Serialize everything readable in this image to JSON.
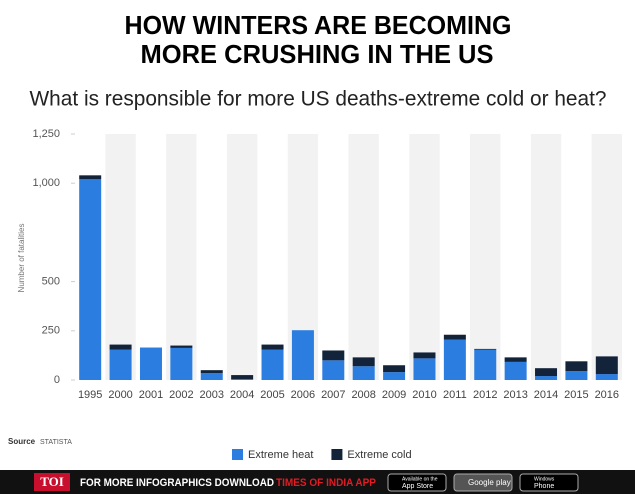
{
  "chart_data": {
    "type": "bar",
    "stacked": true,
    "title": [
      "HOW WINTERS ARE BECOMING",
      "MORE CRUSHING IN THE US"
    ],
    "subtitle": "What is responsible for more US deaths-extreme cold or heat?",
    "y_label": "Number of fatalities",
    "categories": [
      "1995",
      "2000",
      "2001",
      "2002",
      "2003",
      "2004",
      "2005",
      "2006",
      "2007",
      "2008",
      "2009",
      "2010",
      "2011",
      "2012",
      "2013",
      "2014",
      "2015",
      "2016"
    ],
    "series": [
      {
        "name": "Extreme heat",
        "color": "#2b7de0",
        "values": [
          1020,
          155,
          165,
          163,
          35,
          5,
          155,
          253,
          100,
          70,
          40,
          110,
          205,
          155,
          92,
          20,
          45,
          30
        ]
      },
      {
        "name": "Extreme cold",
        "color": "#13233a",
        "values": [
          20,
          25,
          0,
          12,
          15,
          20,
          25,
          0,
          50,
          45,
          35,
          30,
          25,
          3,
          23,
          40,
          50,
          90
        ]
      }
    ],
    "ylim": [
      0,
      1250
    ],
    "yticks": [
      0,
      250,
      500,
      {
        "value": 1000,
        "label": "1,000"
      },
      {
        "value": 1250,
        "label": "1,250"
      }
    ],
    "legend": "bottom"
  },
  "source": {
    "label": "Source",
    "name": "STATISTA"
  },
  "footer": {
    "logo": "TOI",
    "text": "FOR MORE  INFOGRAPHICS DOWNLOAD",
    "highlight": "TIMES OF INDIA APP",
    "badges": [
      {
        "small": "Available on the",
        "big": "App Store"
      },
      {
        "small": "",
        "big": "Google play"
      },
      {
        "small": "Windows",
        "big": "Phone"
      }
    ]
  }
}
